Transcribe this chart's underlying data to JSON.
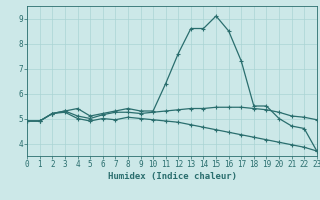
{
  "xlabel": "Humidex (Indice chaleur)",
  "xlim": [
    0,
    23
  ],
  "ylim": [
    3.5,
    9.5
  ],
  "yticks": [
    4,
    5,
    6,
    7,
    8,
    9
  ],
  "xticks": [
    0,
    1,
    2,
    3,
    4,
    5,
    6,
    7,
    8,
    9,
    10,
    11,
    12,
    13,
    14,
    15,
    16,
    17,
    18,
    19,
    20,
    21,
    22,
    23
  ],
  "bg_color": "#cce8e8",
  "line_color": "#2a6e6e",
  "grid_color": "#aad4d4",
  "line1_x": [
    0,
    1,
    2,
    3,
    4,
    5,
    6,
    7,
    8,
    9,
    10,
    11,
    12,
    13,
    14,
    15,
    16,
    17,
    18,
    19,
    20,
    21,
    22,
    23
  ],
  "line1_y": [
    4.9,
    4.9,
    5.2,
    5.3,
    5.4,
    5.1,
    5.2,
    5.3,
    5.4,
    5.3,
    5.3,
    6.4,
    7.6,
    8.6,
    8.6,
    9.1,
    8.5,
    7.3,
    5.5,
    5.5,
    5.0,
    4.7,
    4.6,
    3.7
  ],
  "line2_x": [
    0,
    1,
    2,
    3,
    4,
    5,
    6,
    7,
    8,
    9,
    10,
    11,
    12,
    13,
    14,
    15,
    16,
    17,
    18,
    19,
    20,
    21,
    22,
    23
  ],
  "line2_y": [
    4.9,
    4.9,
    5.2,
    5.3,
    5.1,
    5.0,
    5.15,
    5.25,
    5.25,
    5.2,
    5.25,
    5.3,
    5.35,
    5.4,
    5.4,
    5.45,
    5.45,
    5.45,
    5.4,
    5.35,
    5.25,
    5.1,
    5.05,
    4.95
  ],
  "line3_x": [
    0,
    1,
    2,
    3,
    4,
    5,
    6,
    7,
    8,
    9,
    10,
    11,
    12,
    13,
    14,
    15,
    16,
    17,
    18,
    19,
    20,
    21,
    22,
    23
  ],
  "line3_y": [
    4.9,
    4.9,
    5.2,
    5.25,
    5.0,
    4.9,
    5.0,
    4.95,
    5.05,
    5.0,
    4.95,
    4.9,
    4.85,
    4.75,
    4.65,
    4.55,
    4.45,
    4.35,
    4.25,
    4.15,
    4.05,
    3.95,
    3.85,
    3.7
  ]
}
